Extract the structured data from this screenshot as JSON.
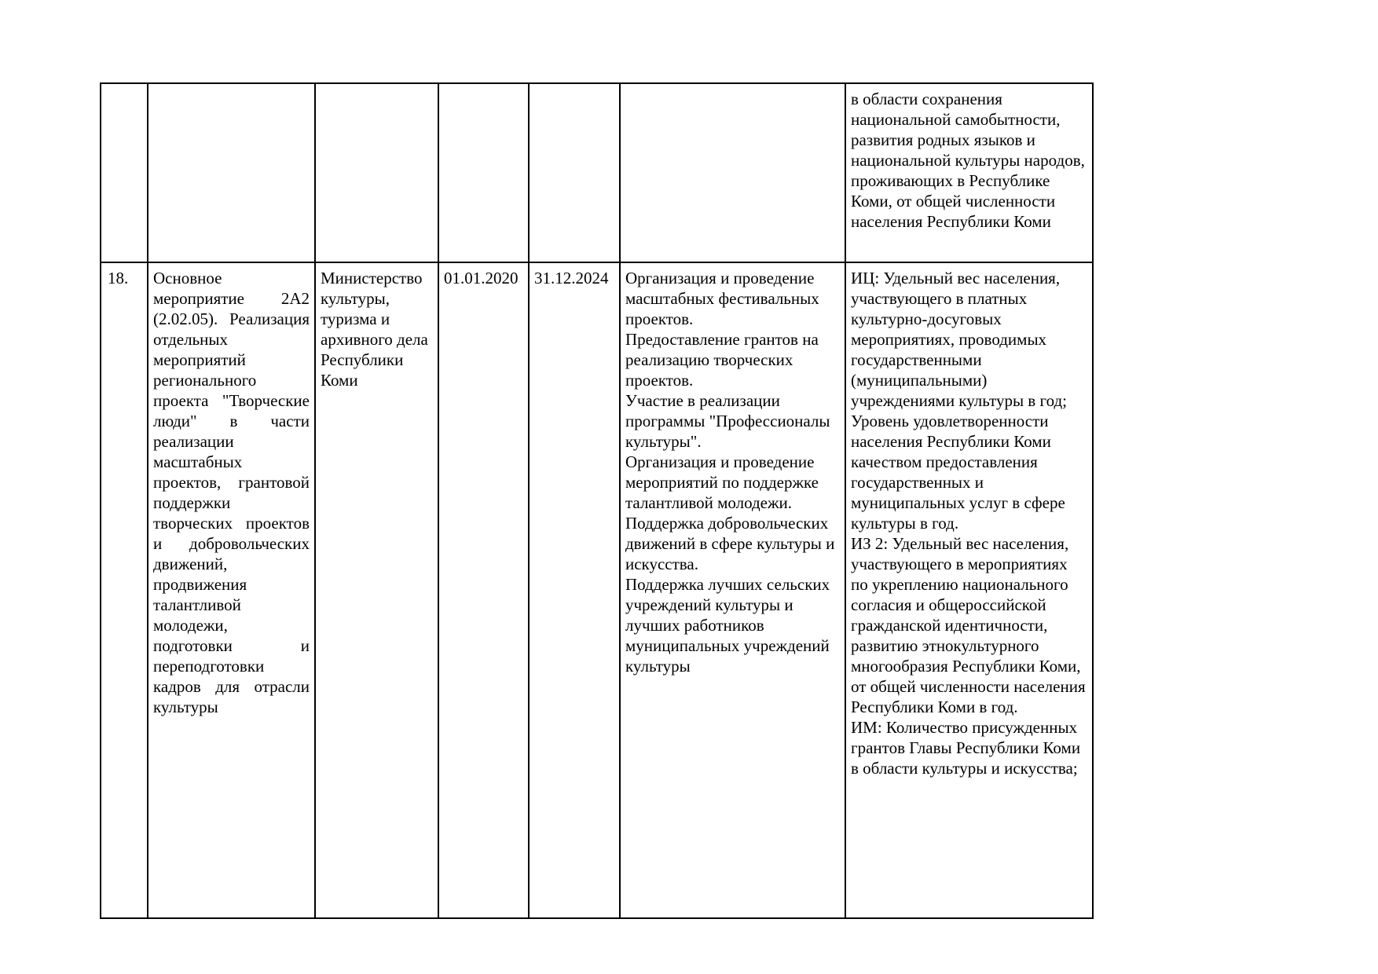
{
  "page": {
    "background": "#ffffff",
    "text_color": "#000000",
    "border_color": "#000000"
  },
  "table": {
    "rows": {
      "continuation": {
        "number": "",
        "title": "",
        "executor": "",
        "start_date": "",
        "end_date": "",
        "activities_tail": "",
        "indicators_tail": "в области сохранения национальной самобытности, развития родных языков и национальной культуры народов, проживающих в Республике Коми, от общей численности населения Республики Коми"
      },
      "item18": {
        "number": "18.",
        "title": "Основное мероприятие 2А2 (2.02.05). Реализация отдельных мероприятий регионального проекта \"Творческие люди\" в части реализации масштабных проектов, грантовой поддержки творческих проектов и добровольческих движений, продвижения талантливой молодежи, подготовки и переподготовки кадров для отрасли культуры",
        "executor": "Министерство культуры, туризма и архивного дела Республики Коми",
        "start_date": "01.01.2020",
        "end_date": "31.12.2024",
        "activities": [
          "Организация и проведение масштабных фестивальных проектов.",
          "Предоставление грантов на реализацию творческих проектов.",
          "Участие в реализации программы \"Профессионалы культуры\".",
          "Организация и проведение мероприятий по поддержке талантливой молодежи.",
          "Поддержка добровольческих движений в сфере культуры и искусства.",
          "Поддержка лучших сельских учреждений культуры и лучших работников муниципальных учреждений культуры"
        ],
        "indicators": [
          "ИЦ: Удельный вес населения, участвующего в платных культурно-досуговых мероприятиях, проводимых государственными (муниципальными) учреждениями культуры в год;",
          "Уровень удовлетворенности населения Республики Коми качеством предоставления государственных и муниципальных услуг в сфере культуры в год.",
          "ИЗ 2: Удельный вес населения, участвующего в мероприятиях по укреплению национального согласия и общероссийской гражданской идентичности, развитию этнокультурного многообразия Республики Коми, от общей численности населения Республики Коми в год.",
          "ИМ: Количество присужденных грантов Главы Республики Коми в области культуры и искусства;"
        ]
      }
    }
  }
}
